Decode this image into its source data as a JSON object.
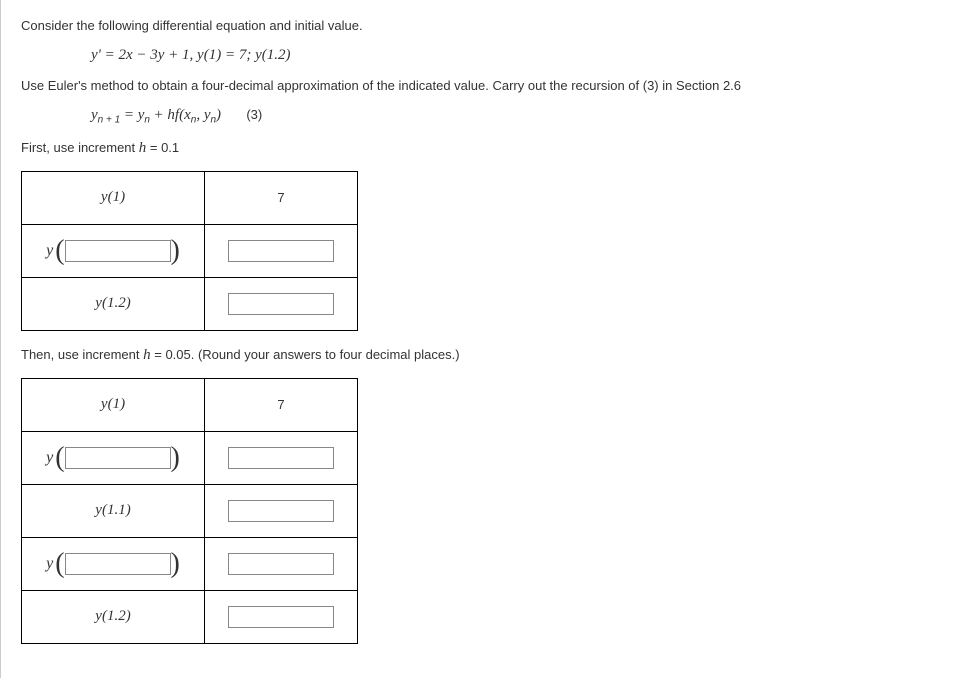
{
  "intro": "Consider the following differential equation and initial value.",
  "equation": "y' = 2x − 3y + 1, y(1) = 7;   y(1.2)",
  "instruction": "Use Euler's method to obtain a four-decimal approximation of the indicated value. Carry out the recursion of (3) in Section 2.6",
  "recursion_label": "(3)",
  "first_prompt": "First, use increment h = 0.1",
  "second_prompt": "Then, use increment h = 0.05. (Round your answers to four decimal places.)",
  "table1": {
    "rows": [
      {
        "label": "y(1)",
        "has_input_label": false,
        "value": "7",
        "has_input_value": false
      },
      {
        "label": "",
        "has_input_label": true,
        "value": "",
        "has_input_value": true
      },
      {
        "label": "y(1.2)",
        "has_input_label": false,
        "value": "",
        "has_input_value": true
      }
    ]
  },
  "table2": {
    "rows": [
      {
        "label": "y(1)",
        "has_input_label": false,
        "value": "7",
        "has_input_value": false
      },
      {
        "label": "",
        "has_input_label": true,
        "value": "",
        "has_input_value": true
      },
      {
        "label": "y(1.1)",
        "has_input_label": false,
        "value": "",
        "has_input_value": true
      },
      {
        "label": "",
        "has_input_label": true,
        "value": "",
        "has_input_value": true
      },
      {
        "label": "y(1.2)",
        "has_input_label": false,
        "value": "",
        "has_input_value": true
      }
    ]
  }
}
